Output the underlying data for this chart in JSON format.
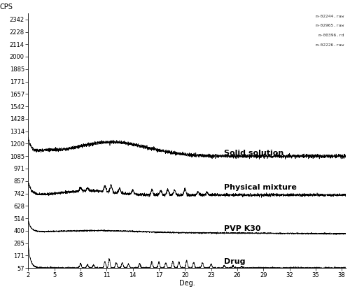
{
  "title": "",
  "xlabel": "Deg.",
  "ylabel": "CPS",
  "xlim": [
    2.0,
    38.5
  ],
  "yticks": [
    57,
    171,
    285,
    400,
    514,
    628,
    742,
    857,
    971,
    1085,
    1200,
    1314,
    1428,
    1542,
    1657,
    1771,
    1885,
    2000,
    2114,
    2228,
    2342
  ],
  "ylim": [
    57,
    2400
  ],
  "xticks": [
    2.0,
    5.0,
    8.0,
    11.0,
    14.0,
    17.0,
    20.0,
    23.0,
    26.0,
    29.0,
    32.0,
    35.0,
    38.0
  ],
  "legend_labels": [
    "m-02244.raw",
    "m-02965.raw",
    "m-00396.rd",
    "m-02226.raw"
  ],
  "curve_labels": [
    "Solid solution",
    "Physical mixture",
    "PVP K30",
    "Drug"
  ],
  "background_color": "#ffffff",
  "line_color": "#000000",
  "font_size": 7,
  "label_font_size": 8,
  "tick_font_size": 6
}
